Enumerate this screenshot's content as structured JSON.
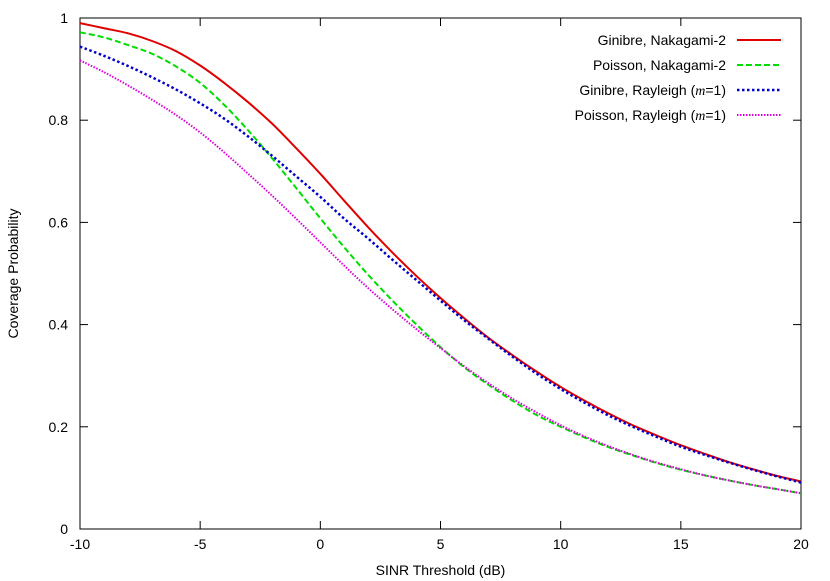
{
  "chart_data": {
    "type": "line",
    "xlabel": "SINR Threshold (dB)",
    "ylabel": "Coverage Probability",
    "xlim": [
      -10,
      20
    ],
    "ylim": [
      0,
      1
    ],
    "xticks": [
      "-10",
      "-5",
      "0",
      "5",
      "10",
      "15",
      "20"
    ],
    "xtick_values": [
      -10,
      -5,
      0,
      5,
      10,
      15,
      20
    ],
    "yticks": [
      "0",
      "0.2",
      "0.4",
      "0.6",
      "0.8",
      "1"
    ],
    "ytick_values": [
      0,
      0.2,
      0.4,
      0.6,
      0.8,
      1
    ],
    "grid": false,
    "legend_position": "top-right",
    "x": [
      -10,
      -9,
      -8,
      -7,
      -6,
      -5,
      -4,
      -3,
      -2,
      -1,
      0,
      1,
      2,
      3,
      4,
      5,
      6,
      7,
      8,
      9,
      10,
      11,
      12,
      13,
      14,
      15,
      16,
      17,
      18,
      19,
      20
    ],
    "series": [
      {
        "name": "Ginibre, Nakagami-2",
        "legend_parts": [
          "Ginibre, Nakagami-2"
        ],
        "color": "#e00000",
        "dash": "solid",
        "values": [
          0.99,
          0.98,
          0.97,
          0.955,
          0.935,
          0.907,
          0.873,
          0.835,
          0.793,
          0.745,
          0.695,
          0.642,
          0.59,
          0.541,
          0.495,
          0.452,
          0.412,
          0.374,
          0.34,
          0.308,
          0.278,
          0.251,
          0.226,
          0.203,
          0.183,
          0.164,
          0.147,
          0.131,
          0.117,
          0.104,
          0.093
        ]
      },
      {
        "name": "Poisson, Nakagami-2",
        "legend_parts": [
          "Poisson, Nakagami-2"
        ],
        "color": "#00dd00",
        "dash": "dashed",
        "values": [
          0.972,
          0.962,
          0.947,
          0.93,
          0.905,
          0.873,
          0.83,
          0.78,
          0.725,
          0.667,
          0.608,
          0.551,
          0.497,
          0.447,
          0.4,
          0.356,
          0.316,
          0.282,
          0.251,
          0.223,
          0.2,
          0.179,
          0.16,
          0.144,
          0.129,
          0.116,
          0.105,
          0.095,
          0.086,
          0.078,
          0.07
        ]
      },
      {
        "name": "Ginibre, Rayleigh (m=1)",
        "legend_parts": [
          "Ginibre, Rayleigh (",
          "m",
          "=1)"
        ],
        "color": "#0000cc",
        "dash": "dotted",
        "values": [
          0.944,
          0.926,
          0.906,
          0.884,
          0.86,
          0.833,
          0.803,
          0.768,
          0.73,
          0.69,
          0.65,
          0.607,
          0.568,
          0.527,
          0.487,
          0.447,
          0.408,
          0.372,
          0.337,
          0.304,
          0.274,
          0.247,
          0.222,
          0.2,
          0.18,
          0.161,
          0.145,
          0.13,
          0.116,
          0.103,
          0.091
        ]
      },
      {
        "name": "Poisson, Rayleigh (m=1)",
        "legend_parts": [
          "Poisson, Rayleigh (",
          "m",
          "=1)"
        ],
        "color": "#dd00dd",
        "dash": "dotted-fine",
        "values": [
          0.917,
          0.894,
          0.868,
          0.84,
          0.81,
          0.776,
          0.737,
          0.695,
          0.652,
          0.607,
          0.561,
          0.515,
          0.471,
          0.43,
          0.391,
          0.354,
          0.318,
          0.285,
          0.255,
          0.228,
          0.203,
          0.181,
          0.162,
          0.145,
          0.13,
          0.117,
          0.105,
          0.095,
          0.086,
          0.078,
          0.07
        ]
      }
    ]
  }
}
